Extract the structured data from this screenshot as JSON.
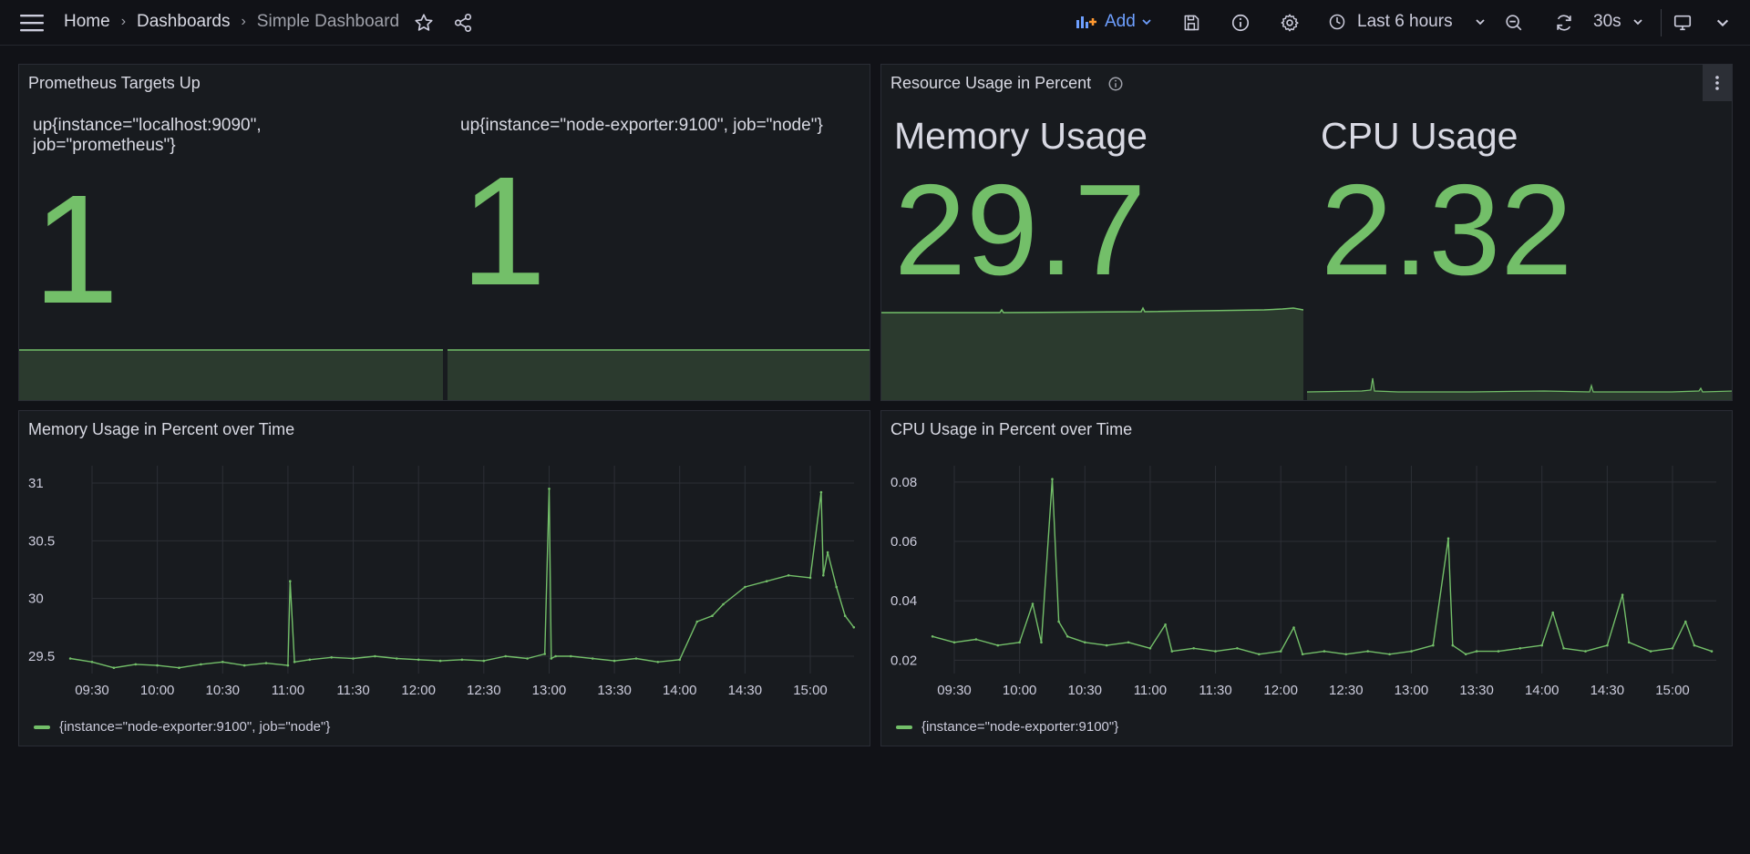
{
  "topbar": {
    "breadcrumbs": [
      "Home",
      "Dashboards",
      "Simple Dashboard"
    ],
    "add_label": "Add",
    "time_range": "Last 6 hours",
    "refresh_interval": "30s"
  },
  "panels": {
    "targets": {
      "title": "Prometheus Targets Up",
      "stats": [
        {
          "label": "up{instance=\"localhost:9090\", job=\"prometheus\"}",
          "value": "1"
        },
        {
          "label": "up{instance=\"node-exporter:9100\", job=\"node\"}",
          "value": "1"
        }
      ]
    },
    "resources": {
      "title": "Resource Usage in Percent",
      "stats": [
        {
          "label": "Memory Usage",
          "value": "29.7"
        },
        {
          "label": "CPU Usage",
          "value": "2.32"
        }
      ]
    },
    "memory": {
      "title": "Memory Usage in Percent over Time",
      "legend": "{instance=\"node-exporter:9100\", job=\"node\"}"
    },
    "cpu": {
      "title": "CPU Usage in Percent over Time",
      "legend": "{instance=\"node-exporter:9100\"}"
    }
  },
  "colors": {
    "series": "#73bf69",
    "accent": "#6e9fff",
    "background": "#111217",
    "panel": "#181b1f"
  },
  "chart_data": [
    {
      "type": "line",
      "x_ticks": [
        "09:30",
        "10:00",
        "10:30",
        "11:00",
        "11:30",
        "12:00",
        "12:30",
        "13:00",
        "13:30",
        "14:00",
        "14:30",
        "15:00"
      ],
      "y_ticks": [
        "29.5",
        "30",
        "30.5",
        "31"
      ],
      "ylim": [
        29.35,
        31.15
      ],
      "grid": true,
      "legend_position": "bottom-left",
      "series": [
        {
          "name": "{instance=\"node-exporter:9100\", job=\"node\"}",
          "x": [
            "09:20",
            "09:30",
            "09:40",
            "09:50",
            "10:00",
            "10:10",
            "10:20",
            "10:30",
            "10:40",
            "10:50",
            "11:00",
            "11:01",
            "11:03",
            "11:10",
            "11:20",
            "11:30",
            "11:40",
            "11:50",
            "12:00",
            "12:10",
            "12:20",
            "12:30",
            "12:40",
            "12:50",
            "12:58",
            "13:00",
            "13:01",
            "13:03",
            "13:10",
            "13:20",
            "13:30",
            "13:40",
            "13:50",
            "14:00",
            "14:08",
            "14:15",
            "14:20",
            "14:30",
            "14:40",
            "14:50",
            "15:00",
            "15:05",
            "15:06",
            "15:08",
            "15:12",
            "15:16",
            "15:20"
          ],
          "values": [
            29.48,
            29.45,
            29.4,
            29.43,
            29.42,
            29.4,
            29.43,
            29.45,
            29.42,
            29.44,
            29.42,
            30.15,
            29.45,
            29.47,
            29.49,
            29.48,
            29.5,
            29.48,
            29.47,
            29.46,
            29.47,
            29.46,
            29.5,
            29.48,
            29.52,
            30.95,
            29.48,
            29.5,
            29.5,
            29.48,
            29.46,
            29.48,
            29.45,
            29.47,
            29.8,
            29.85,
            29.95,
            30.1,
            30.15,
            30.2,
            30.18,
            30.92,
            30.2,
            30.4,
            30.1,
            29.85,
            29.75
          ]
        }
      ]
    },
    {
      "type": "line",
      "x_ticks": [
        "09:30",
        "10:00",
        "10:30",
        "11:00",
        "11:30",
        "12:00",
        "12:30",
        "13:00",
        "13:30",
        "14:00",
        "14:30",
        "15:00"
      ],
      "y_ticks": [
        "0.02",
        "0.04",
        "0.06",
        "0.08"
      ],
      "ylim": [
        0.0155,
        0.0855
      ],
      "grid": true,
      "legend_position": "bottom-left",
      "series": [
        {
          "name": "{instance=\"node-exporter:9100\"}",
          "x": [
            "09:20",
            "09:30",
            "09:40",
            "09:50",
            "10:00",
            "10:06",
            "10:10",
            "10:15",
            "10:18",
            "10:22",
            "10:30",
            "10:40",
            "10:50",
            "11:00",
            "11:07",
            "11:10",
            "11:20",
            "11:30",
            "11:40",
            "11:50",
            "12:00",
            "12:06",
            "12:10",
            "12:20",
            "12:30",
            "12:40",
            "12:50",
            "13:00",
            "13:10",
            "13:17",
            "13:19",
            "13:25",
            "13:30",
            "13:40",
            "13:50",
            "14:00",
            "14:05",
            "14:10",
            "14:20",
            "14:30",
            "14:37",
            "14:40",
            "14:50",
            "15:00",
            "15:06",
            "15:10",
            "15:18"
          ],
          "values": [
            0.028,
            0.026,
            0.027,
            0.025,
            0.026,
            0.039,
            0.026,
            0.081,
            0.033,
            0.028,
            0.026,
            0.025,
            0.026,
            0.024,
            0.032,
            0.023,
            0.024,
            0.023,
            0.024,
            0.022,
            0.023,
            0.031,
            0.022,
            0.023,
            0.022,
            0.023,
            0.022,
            0.023,
            0.025,
            0.061,
            0.025,
            0.022,
            0.023,
            0.023,
            0.024,
            0.025,
            0.036,
            0.024,
            0.023,
            0.025,
            0.042,
            0.026,
            0.023,
            0.024,
            0.033,
            0.025,
            0.023
          ]
        }
      ]
    }
  ]
}
